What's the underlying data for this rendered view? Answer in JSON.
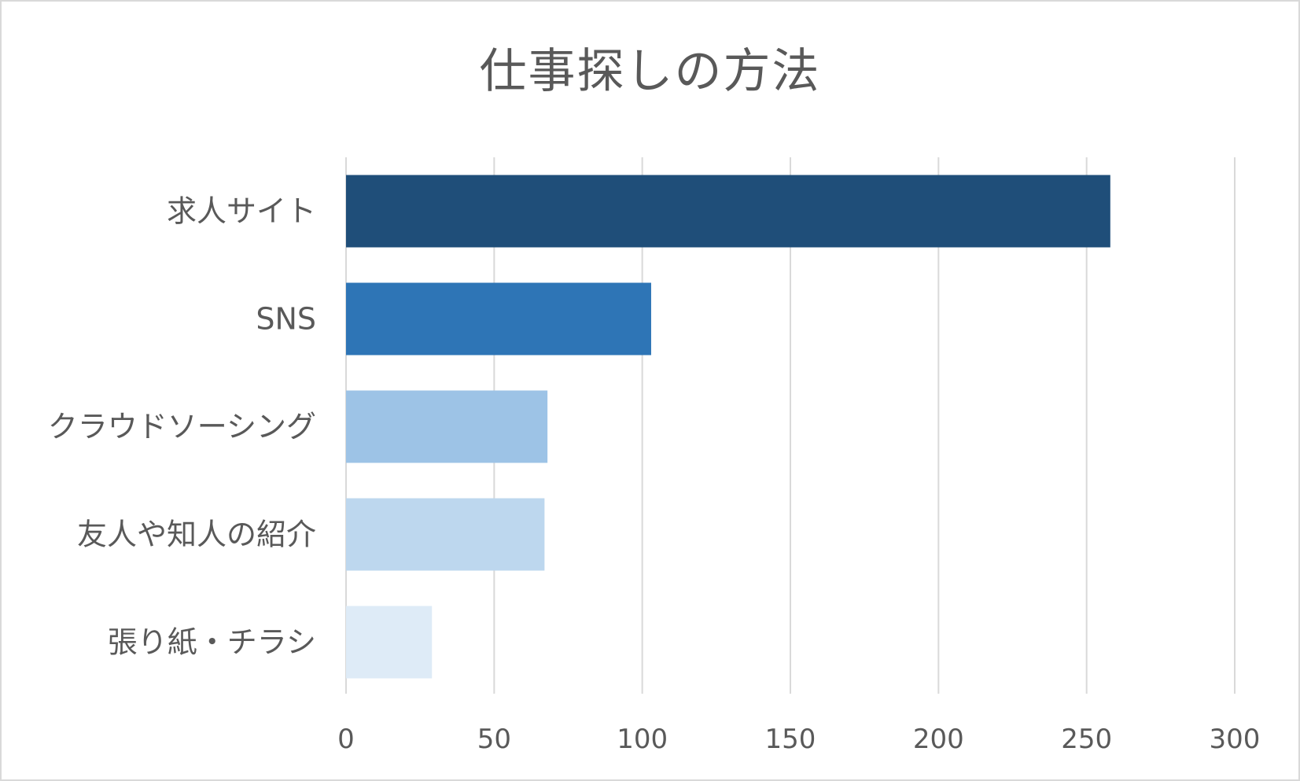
{
  "chart_data": {
    "type": "bar",
    "orientation": "horizontal",
    "title": "仕事探しの方法",
    "categories": [
      "求人サイト",
      "SNS",
      "クラウドソーシング",
      "友人や知人の紹介",
      "張り紙・チラシ"
    ],
    "values": [
      258,
      103,
      68,
      67,
      29
    ],
    "colors": [
      "#1f4e79",
      "#2e75b6",
      "#9dc3e6",
      "#bdd7ee",
      "#deebf7"
    ],
    "xlim": [
      0,
      300
    ],
    "xticks": [
      0,
      50,
      100,
      150,
      200,
      250,
      300
    ],
    "grid": true,
    "legend": "none",
    "xlabel": "",
    "ylabel": ""
  }
}
